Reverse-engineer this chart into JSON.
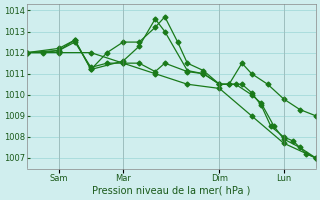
{
  "title": "",
  "xlabel": "Pression niveau de la mer( hPa )",
  "ylabel": "",
  "bg_color": "#d0eeee",
  "grid_color": "#aadddd",
  "line_color": "#1a7a1a",
  "ylim": [
    1006.5,
    1014.3
  ],
  "yticks": [
    1007,
    1008,
    1009,
    1010,
    1011,
    1012,
    1013,
    1014
  ],
  "x_day_labels": [
    {
      "label": "Sam",
      "x": 1.0
    },
    {
      "label": "Mar",
      "x": 3.0
    },
    {
      "label": "Dim",
      "x": 6.0
    },
    {
      "label": "Lun",
      "x": 8.0
    }
  ],
  "series": [
    {
      "x": [
        0,
        1,
        2,
        3,
        4,
        5,
        6,
        7,
        8,
        9
      ],
      "y": [
        1012.0,
        1012.0,
        1012.0,
        1011.5,
        1011.0,
        1010.5,
        1010.3,
        1009.0,
        1007.7,
        1007.0
      ]
    },
    {
      "x": [
        0,
        1,
        1.5,
        2,
        2.5,
        3,
        3.5,
        4,
        4.3,
        4.7,
        5,
        5.5,
        6,
        6.3,
        6.7,
        7,
        7.5,
        8,
        8.5,
        9
      ],
      "y": [
        1012.0,
        1012.2,
        1012.6,
        1011.2,
        1012.0,
        1012.5,
        1012.5,
        1013.2,
        1013.7,
        1012.5,
        1011.5,
        1011.15,
        1010.5,
        1010.5,
        1011.5,
        1011.0,
        1010.5,
        1009.8,
        1009.3,
        1009.0
      ]
    },
    {
      "x": [
        0,
        1,
        1.5,
        2,
        3,
        3.5,
        4,
        4.3,
        5,
        5.5,
        6,
        6.5,
        7,
        7.3,
        7.7,
        8,
        8.5,
        9
      ],
      "y": [
        1012.0,
        1012.1,
        1012.6,
        1011.2,
        1011.6,
        1012.3,
        1013.6,
        1013.0,
        1011.15,
        1011.0,
        1010.5,
        1010.5,
        1010.0,
        1009.6,
        1008.5,
        1007.9,
        1007.5,
        1007.0
      ]
    },
    {
      "x": [
        0,
        0.5,
        1,
        1.5,
        2,
        2.5,
        3,
        3.5,
        4,
        4.3,
        5,
        5.5,
        6,
        6.3,
        6.7,
        7,
        7.3,
        7.6,
        8,
        8.3,
        8.7,
        9
      ],
      "y": [
        1012.0,
        1012.0,
        1012.1,
        1012.5,
        1011.3,
        1011.5,
        1011.5,
        1011.5,
        1011.1,
        1011.5,
        1011.1,
        1011.0,
        1010.5,
        1010.5,
        1010.5,
        1010.1,
        1009.5,
        1008.5,
        1008.0,
        1007.8,
        1007.2,
        1007.0
      ]
    }
  ]
}
